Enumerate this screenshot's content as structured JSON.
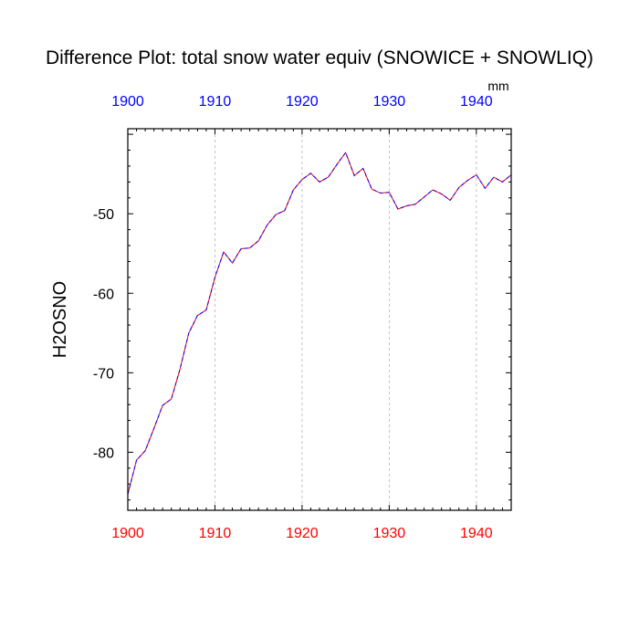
{
  "chart_data": {
    "type": "line",
    "title": "Difference Plot: total snow water equiv (SNOWICE + SNOWLIQ)",
    "units": "mm",
    "ylabel": "H2OSNO",
    "xlabel": "",
    "xlim": [
      1900,
      1944
    ],
    "ylim": [
      -87.3,
      -39.3
    ],
    "x_ticks": [
      1900,
      1910,
      1920,
      1930,
      1940
    ],
    "x_tick_labels": [
      "1900",
      "1910",
      "1920",
      "1930",
      "1940"
    ],
    "y_ticks": [
      -80,
      -70,
      -60,
      -50
    ],
    "y_tick_labels": [
      "-80",
      "-70",
      "-60",
      "-50"
    ],
    "top_axis_color": "#0000ff",
    "bottom_axis_color": "#ff0000",
    "grid": "vertical dashed at major x ticks",
    "series": [
      {
        "color_primary": "#ff0000",
        "color_secondary": "#0000ff",
        "x": [
          1900,
          1901,
          1902,
          1903,
          1904,
          1905,
          1906,
          1907,
          1908,
          1909,
          1910,
          1911,
          1912,
          1913,
          1914,
          1915,
          1916,
          1917,
          1918,
          1919,
          1920,
          1921,
          1922,
          1923,
          1924,
          1925,
          1926,
          1927,
          1928,
          1929,
          1930,
          1931,
          1932,
          1933,
          1934,
          1935,
          1936,
          1937,
          1938,
          1939,
          1940,
          1941,
          1942,
          1943,
          1944
        ],
        "values": [
          -85.3,
          -81.0,
          -79.8,
          -77.0,
          -74.1,
          -73.3,
          -69.5,
          -65.0,
          -62.8,
          -62.1,
          -58.0,
          -54.8,
          -56.2,
          -54.4,
          -54.3,
          -53.4,
          -51.4,
          -50.1,
          -49.6,
          -47.0,
          -45.7,
          -44.9,
          -46.0,
          -45.4,
          -43.8,
          -42.3,
          -45.2,
          -44.3,
          -46.9,
          -47.4,
          -47.3,
          -49.4,
          -49.0,
          -48.8,
          -47.9,
          -47.0,
          -47.5,
          -48.3,
          -46.7,
          -45.8,
          -45.1,
          -46.8,
          -45.4,
          -46.0,
          -45.1
        ]
      }
    ]
  }
}
